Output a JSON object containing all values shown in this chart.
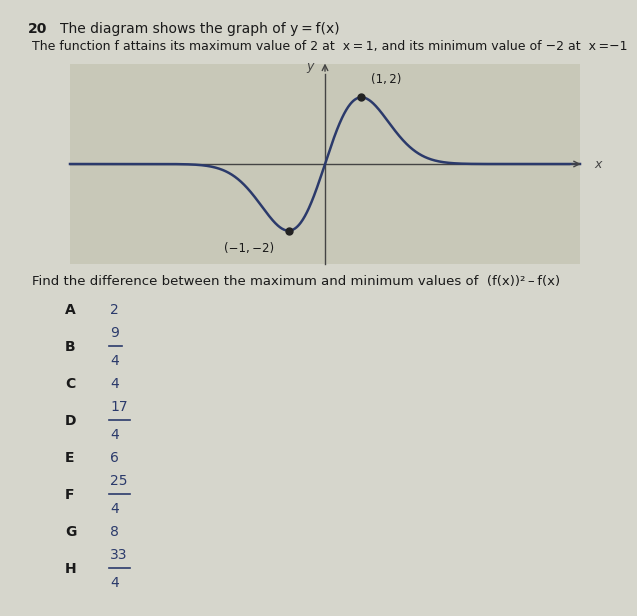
{
  "title_number": "20",
  "title_text": "The diagram shows the graph of y = f(x)",
  "subtitle": "The function f attains its maximum value of 2 at  x = 1, and its minimum value of −2 at  x =−1",
  "max_point": [
    1,
    2
  ],
  "min_point": [
    -1,
    -2
  ],
  "max_label": "(1, 2)",
  "min_label": "(−1, −2)",
  "question_text": "Find the difference between the maximum and minimum values of  (f(x))² – f(x)",
  "options": [
    [
      "A",
      "2"
    ],
    [
      "B",
      "9/4"
    ],
    [
      "C",
      "4"
    ],
    [
      "D",
      "17/4"
    ],
    [
      "E",
      "6"
    ],
    [
      "F",
      "25/4"
    ],
    [
      "G",
      "8"
    ],
    [
      "H",
      "33/4"
    ]
  ],
  "curve_color": "#2b3a6b",
  "axis_color": "#444444",
  "background_color": "#d6d6cc",
  "text_color": "#1a1a1a",
  "graph_bg": "#c8c8b8",
  "option_color": "#2b3a6b"
}
